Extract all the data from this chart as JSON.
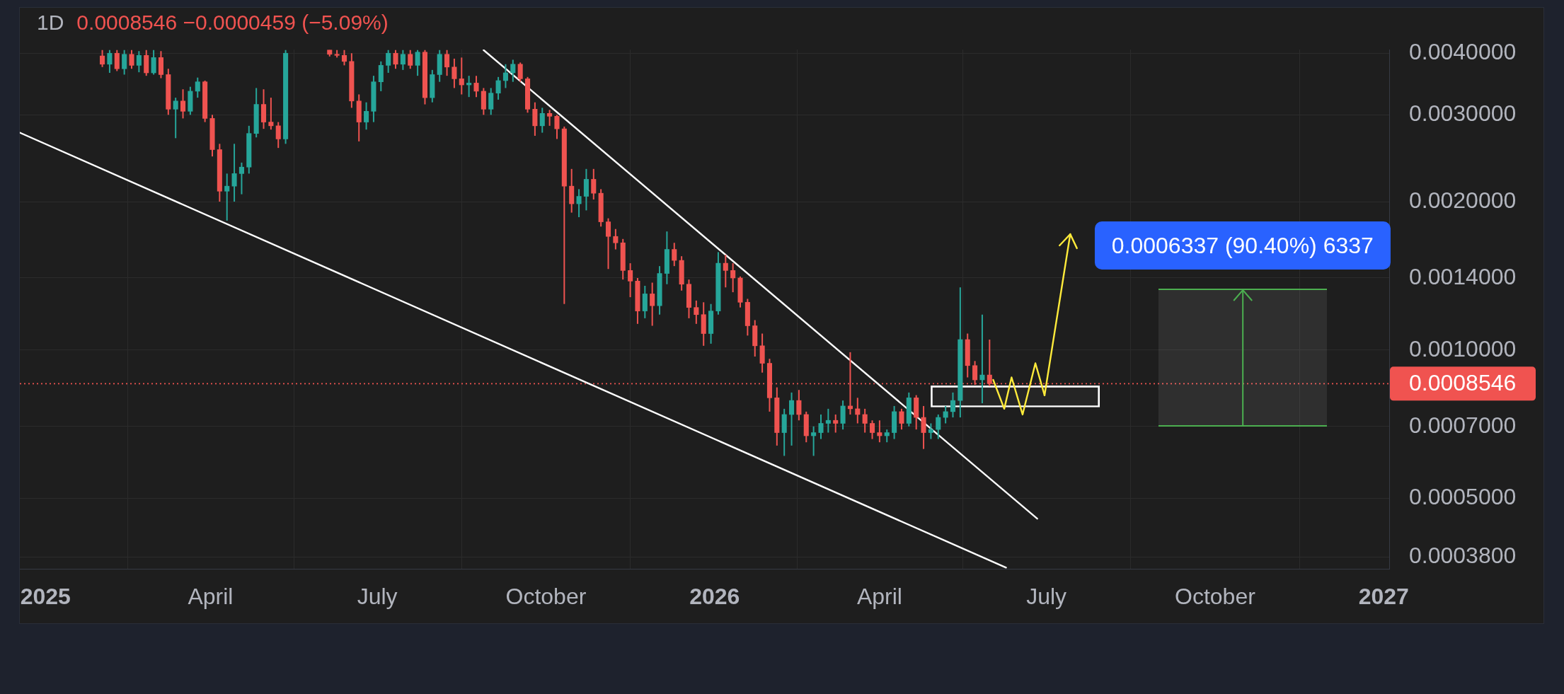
{
  "chart_data": {
    "type": "candlestick",
    "title": "1D",
    "subtitle": "0.0008546 −0.0000459 (−5.09%)",
    "x": [
      "2025-02-01",
      "2025-02-05",
      "2025-02-09",
      "2025-02-13",
      "2025-02-17",
      "2025-02-21",
      "2025-02-25",
      "2025-03-01",
      "2025-03-05",
      "2025-03-09",
      "2025-03-13",
      "2025-03-17",
      "2025-03-21",
      "2025-03-25",
      "2025-03-29",
      "2025-04-02",
      "2025-04-06",
      "2025-04-10",
      "2025-04-14",
      "2025-04-18",
      "2025-04-22",
      "2025-04-26",
      "2025-04-30",
      "2025-05-04",
      "2025-05-08",
      "2025-05-12",
      "2025-06-05",
      "2025-06-09",
      "2025-06-13",
      "2025-06-17",
      "2025-06-21",
      "2025-06-25",
      "2025-06-29",
      "2025-07-03",
      "2025-07-07",
      "2025-07-11",
      "2025-07-15",
      "2025-07-19",
      "2025-07-23",
      "2025-07-27",
      "2025-07-31",
      "2025-08-04",
      "2025-08-08",
      "2025-08-12",
      "2025-08-16",
      "2025-08-20",
      "2025-08-24",
      "2025-08-28",
      "2025-09-01",
      "2025-09-05",
      "2025-09-09",
      "2025-09-13",
      "2025-09-17",
      "2025-09-21",
      "2025-09-25",
      "2025-09-29",
      "2025-10-03",
      "2025-10-07",
      "2025-10-11",
      "2025-10-15",
      "2025-10-19",
      "2025-10-23",
      "2025-10-27",
      "2025-10-31",
      "2025-11-04",
      "2025-11-08",
      "2025-11-12",
      "2025-11-16",
      "2025-11-20",
      "2025-11-24",
      "2025-11-28",
      "2025-12-02",
      "2025-12-06",
      "2025-12-10",
      "2025-12-14",
      "2025-12-18",
      "2025-12-22",
      "2025-12-26",
      "2025-12-30",
      "2026-01-03",
      "2026-01-07",
      "2026-01-11",
      "2026-01-15",
      "2026-01-19",
      "2026-01-23",
      "2026-01-27",
      "2026-01-31",
      "2026-02-04",
      "2026-02-08",
      "2026-02-12",
      "2026-02-16",
      "2026-02-20",
      "2026-02-24",
      "2026-02-28",
      "2026-03-04",
      "2026-03-08",
      "2026-03-12",
      "2026-03-16",
      "2026-03-20",
      "2026-03-24",
      "2026-03-28",
      "2026-04-01",
      "2026-04-05",
      "2026-04-09",
      "2026-04-13",
      "2026-04-17",
      "2026-04-21",
      "2026-04-25",
      "2026-04-29",
      "2026-05-03",
      "2026-05-07",
      "2026-05-11",
      "2026-05-15",
      "2026-05-19",
      "2026-05-23",
      "2026-05-27",
      "2026-05-31"
    ],
    "ohlc": [
      [
        0.00395,
        0.00406,
        0.00375,
        0.0038
      ],
      [
        0.0038,
        0.00406,
        0.00365,
        0.004
      ],
      [
        0.004,
        0.00406,
        0.00368,
        0.00372
      ],
      [
        0.00372,
        0.00406,
        0.00362,
        0.00398
      ],
      [
        0.00398,
        0.00406,
        0.00372,
        0.00378
      ],
      [
        0.00378,
        0.00404,
        0.00366,
        0.00396
      ],
      [
        0.00396,
        0.00406,
        0.0036,
        0.00365
      ],
      [
        0.00365,
        0.00406,
        0.00362,
        0.00392
      ],
      [
        0.00392,
        0.00404,
        0.00356,
        0.00362
      ],
      [
        0.00362,
        0.00372,
        0.003,
        0.00308
      ],
      [
        0.00308,
        0.00325,
        0.00269,
        0.0032
      ],
      [
        0.0032,
        0.00338,
        0.00295,
        0.00305
      ],
      [
        0.00305,
        0.00342,
        0.003,
        0.00335
      ],
      [
        0.00335,
        0.00357,
        0.00325,
        0.0035
      ],
      [
        0.0035,
        0.00352,
        0.0029,
        0.00295
      ],
      [
        0.00295,
        0.003,
        0.00247,
        0.00255
      ],
      [
        0.00255,
        0.00262,
        0.002,
        0.0021
      ],
      [
        0.0021,
        0.00228,
        0.00183,
        0.00215
      ],
      [
        0.00215,
        0.00262,
        0.002,
        0.00228
      ],
      [
        0.00228,
        0.0024,
        0.00207,
        0.00235
      ],
      [
        0.00235,
        0.00285,
        0.00228,
        0.00275
      ],
      [
        0.00275,
        0.0034,
        0.0027,
        0.00315
      ],
      [
        0.00315,
        0.00338,
        0.00281,
        0.0029
      ],
      [
        0.0029,
        0.00325,
        0.0028,
        0.00285
      ],
      [
        0.00285,
        0.0029,
        0.00257,
        0.00268
      ],
      [
        0.00268,
        0.00406,
        0.00262,
        0.004
      ],
      [
        0.00406,
        0.00406,
        0.00394,
        0.00398
      ],
      [
        0.00398,
        0.00406,
        0.00392,
        0.00396
      ],
      [
        0.00396,
        0.00406,
        0.00378,
        0.00385
      ],
      [
        0.00385,
        0.004,
        0.0031,
        0.0032
      ],
      [
        0.0032,
        0.0033,
        0.00265,
        0.0029
      ],
      [
        0.0029,
        0.00318,
        0.0028,
        0.00305
      ],
      [
        0.00305,
        0.0036,
        0.0029,
        0.0035
      ],
      [
        0.0035,
        0.00385,
        0.00335,
        0.00378
      ],
      [
        0.00378,
        0.00406,
        0.00365,
        0.004
      ],
      [
        0.004,
        0.00406,
        0.00372,
        0.0038
      ],
      [
        0.0038,
        0.00406,
        0.0037,
        0.00398
      ],
      [
        0.00398,
        0.00406,
        0.00372,
        0.00378
      ],
      [
        0.00378,
        0.00406,
        0.0036,
        0.00402
      ],
      [
        0.00402,
        0.00406,
        0.00315,
        0.00325
      ],
      [
        0.00325,
        0.0037,
        0.00318,
        0.00362
      ],
      [
        0.00362,
        0.00406,
        0.0035,
        0.00398
      ],
      [
        0.00398,
        0.00406,
        0.0036,
        0.00375
      ],
      [
        0.00375,
        0.0039,
        0.0034,
        0.00355
      ],
      [
        0.00355,
        0.00392,
        0.0033,
        0.00345
      ],
      [
        0.00345,
        0.0036,
        0.00326,
        0.00348
      ],
      [
        0.00348,
        0.0036,
        0.00326,
        0.00335
      ],
      [
        0.00335,
        0.0034,
        0.003,
        0.00308
      ],
      [
        0.00308,
        0.0034,
        0.003,
        0.00332
      ],
      [
        0.00332,
        0.00358,
        0.00322,
        0.00352
      ],
      [
        0.00352,
        0.0038,
        0.0034,
        0.00365
      ],
      [
        0.00365,
        0.00388,
        0.0035,
        0.0038
      ],
      [
        0.0038,
        0.00383,
        0.0035,
        0.00355
      ],
      [
        0.00355,
        0.00358,
        0.00303,
        0.00308
      ],
      [
        0.00308,
        0.00318,
        0.00272,
        0.00285
      ],
      [
        0.00285,
        0.0031,
        0.00276,
        0.00302
      ],
      [
        0.00302,
        0.00307,
        0.00285,
        0.00298
      ],
      [
        0.00298,
        0.003,
        0.00268,
        0.00281
      ],
      [
        0.00281,
        0.00284,
        0.00124,
        0.00215
      ],
      [
        0.00215,
        0.00233,
        0.0019,
        0.00198
      ],
      [
        0.00198,
        0.00212,
        0.00186,
        0.00205
      ],
      [
        0.00205,
        0.00233,
        0.00192,
        0.00222
      ],
      [
        0.00222,
        0.00233,
        0.00202,
        0.00208
      ],
      [
        0.00208,
        0.00212,
        0.00178,
        0.00182
      ],
      [
        0.00182,
        0.00185,
        0.00146,
        0.0017
      ],
      [
        0.0017,
        0.00176,
        0.0016,
        0.00165
      ],
      [
        0.00165,
        0.00168,
        0.00139,
        0.00145
      ],
      [
        0.00145,
        0.0015,
        0.00128,
        0.00138
      ],
      [
        0.00138,
        0.0014,
        0.00113,
        0.0012
      ],
      [
        0.0012,
        0.00135,
        0.00116,
        0.0013
      ],
      [
        0.0013,
        0.00137,
        0.00112,
        0.00123
      ],
      [
        0.00123,
        0.00148,
        0.00118,
        0.00143
      ],
      [
        0.00143,
        0.00174,
        0.00136,
        0.0016
      ],
      [
        0.0016,
        0.00165,
        0.00148,
        0.00152
      ],
      [
        0.00152,
        0.00155,
        0.00132,
        0.00136
      ],
      [
        0.00136,
        0.00139,
        0.00116,
        0.00122
      ],
      [
        0.00122,
        0.00126,
        0.00113,
        0.00118
      ],
      [
        0.00118,
        0.00125,
        0.00102,
        0.00108
      ],
      [
        0.00108,
        0.00124,
        0.00103,
        0.0012
      ],
      [
        0.0012,
        0.00158,
        0.00118,
        0.0015
      ],
      [
        0.0015,
        0.00156,
        0.00134,
        0.00145
      ],
      [
        0.00145,
        0.0015,
        0.00131,
        0.0014
      ],
      [
        0.0014,
        0.00141,
        0.00122,
        0.00125
      ],
      [
        0.00125,
        0.00127,
        0.00107,
        0.00112
      ],
      [
        0.00112,
        0.00115,
        0.00097,
        0.00102
      ],
      [
        0.00102,
        0.00108,
        0.0009,
        0.00094
      ],
      [
        0.00094,
        0.00096,
        0.00075,
        0.0008
      ],
      [
        0.0008,
        0.00084,
        0.00064,
        0.00068
      ],
      [
        0.00068,
        0.00076,
        0.00061,
        0.00074
      ],
      [
        0.00074,
        0.00082,
        0.00064,
        0.00079
      ],
      [
        0.00079,
        0.00083,
        0.00072,
        0.00074
      ],
      [
        0.00074,
        0.00075,
        0.00065,
        0.00067
      ],
      [
        0.00067,
        0.0007,
        0.00061,
        0.00068
      ],
      [
        0.00068,
        0.00074,
        0.00066,
        0.00071
      ],
      [
        0.00071,
        0.00076,
        0.00068,
        0.00072
      ],
      [
        0.00072,
        0.00074,
        0.00068,
        0.00071
      ],
      [
        0.00071,
        0.00079,
        0.00069,
        0.00077
      ],
      [
        0.00077,
        0.00099,
        0.00074,
        0.00076
      ],
      [
        0.00076,
        0.0008,
        0.00071,
        0.00074
      ],
      [
        0.00074,
        0.00076,
        0.00068,
        0.00071
      ],
      [
        0.00071,
        0.00072,
        0.00066,
        0.00068
      ],
      [
        0.00068,
        0.00072,
        0.00065,
        0.00067
      ],
      [
        0.00067,
        0.00069,
        0.00065,
        0.00068
      ],
      [
        0.00068,
        0.00077,
        0.00066,
        0.00075
      ],
      [
        0.00075,
        0.00076,
        0.00069,
        0.00071
      ],
      [
        0.00071,
        0.00082,
        0.0007,
        0.0008
      ],
      [
        0.0008,
        0.00081,
        0.00069,
        0.00073
      ],
      [
        0.00073,
        0.00077,
        0.00063,
        0.00068
      ],
      [
        0.00068,
        0.00071,
        0.00066,
        0.00069
      ],
      [
        0.00069,
        0.00074,
        0.00066,
        0.00073
      ],
      [
        0.00073,
        0.00077,
        0.00071,
        0.00075
      ],
      [
        0.00075,
        0.00082,
        0.00073,
        0.00079
      ],
      [
        0.00079,
        0.00134,
        0.00073,
        0.00105
      ],
      [
        0.00105,
        0.00108,
        0.00088,
        0.00093
      ],
      [
        0.00093,
        0.00095,
        0.00085,
        0.00087
      ],
      [
        0.00087,
        0.00118,
        0.00078,
        0.00089
      ],
      [
        0.00089,
        0.00105,
        0.000845,
        0.0008546
      ]
    ],
    "xlim": [
      "2024-12-18",
      "2027-01-04"
    ],
    "xticks": [
      {
        "value": "2025-01-01",
        "label": "2025"
      },
      {
        "value": "2025-04-01",
        "label": "April"
      },
      {
        "value": "2025-07-01",
        "label": "July"
      },
      {
        "value": "2025-10-01",
        "label": "October"
      },
      {
        "value": "2026-01-01",
        "label": "2026"
      },
      {
        "value": "2026-04-01",
        "label": "April"
      },
      {
        "value": "2026-07-01",
        "label": "July"
      },
      {
        "value": "2026-10-01",
        "label": "October"
      },
      {
        "value": "2027-01-01",
        "label": "2027"
      }
    ],
    "ylim": [
      0.00036,
      0.00407
    ],
    "yticks": [
      {
        "value": 0.00038,
        "label": "0.0003800"
      },
      {
        "value": 0.0005,
        "label": "0.0005000"
      },
      {
        "value": 0.0007,
        "label": "0.0007000"
      },
      {
        "value": 0.001,
        "label": "0.0010000"
      },
      {
        "value": 0.0014,
        "label": "0.0014000"
      },
      {
        "value": 0.002,
        "label": "0.0020000"
      },
      {
        "value": 0.003,
        "label": "0.0030000"
      },
      {
        "value": 0.004,
        "label": "0.0040000"
      }
    ],
    "log": true,
    "grid": true,
    "ref_lines": [
      {
        "axis": "y",
        "value": 0.0008546,
        "label": "0.0008546",
        "color": "#f05350",
        "line_style": "dotted"
      }
    ],
    "annotations": [
      "0.0006337 (90.40%) 6337"
    ],
    "series": [
      {
        "type": "line",
        "color": "#ffffff",
        "x": [
          "2025-08-28",
          "2026-06-26"
        ],
        "values": [
          0.00406,
          0.000455
        ]
      },
      {
        "type": "line",
        "color": "#ffffff",
        "x": [
          "2024-12-18",
          "2026-06-09"
        ],
        "values": [
          0.00276,
          0.000362
        ]
      },
      {
        "type": "line",
        "color": "#ffeb3b",
        "x": [
          "2026-06-02",
          "2026-06-08",
          "2026-06-12",
          "2026-06-18",
          "2026-06-25",
          "2026-06-30"
        ],
        "values": [
          0.00087,
          0.00076,
          0.00088,
          0.00074,
          0.00094,
          0.00081
        ]
      },
      {
        "type": "bar",
        "color": "#ffffff",
        "x": [
          "2026-06-14"
        ],
        "base": [
          0.000766
        ],
        "values": [
          8e-05
        ]
      }
    ]
  }
}
